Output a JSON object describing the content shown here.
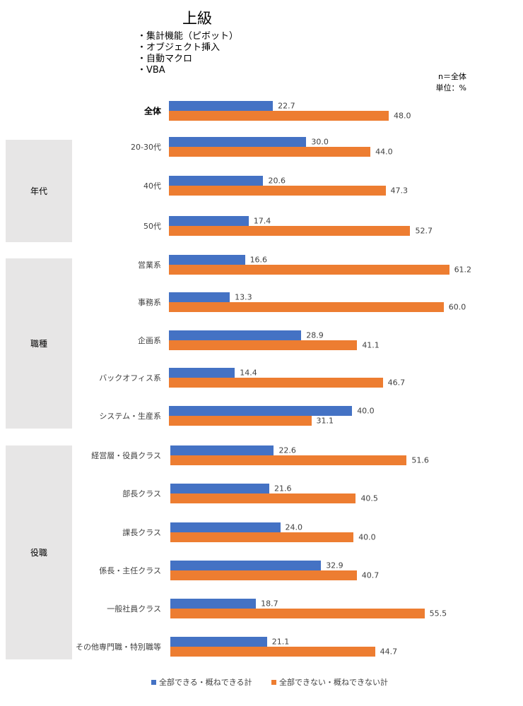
{
  "title": "上級",
  "skills": [
    "・集計機能（ピボット）",
    "・オブジェクト挿入",
    "・自動マクロ",
    "・VBA"
  ],
  "notes": {
    "n": "n＝全体",
    "unit": "単位：%"
  },
  "chart_data": {
    "type": "bar",
    "orientation": "horizontal",
    "groups": [
      {
        "name": "年代",
        "categories": [
          "20-30代",
          "40代",
          "50代"
        ]
      },
      {
        "name": "職種",
        "categories": [
          "営業系",
          "事務系",
          "企画系",
          "バックオフィス系",
          "システム・生産系"
        ]
      },
      {
        "name": "役職",
        "categories": [
          "経営層・役員クラス",
          "部長クラス",
          "課長クラス",
          "係長・主任クラス",
          "一般社員クラス",
          "その他専門職・特別職等"
        ]
      }
    ],
    "categories": [
      "全体",
      "20-30代",
      "40代",
      "50代",
      "営業系",
      "事務系",
      "企画系",
      "バックオフィス系",
      "システム・生産系",
      "経営層・役員クラス",
      "部長クラス",
      "課長クラス",
      "係長・主任クラス",
      "一般社員クラス",
      "その他専門職・特別職等"
    ],
    "series": [
      {
        "name": "全部できる・概ねできる計",
        "color": "#4472c4",
        "values": [
          22.7,
          30.0,
          20.6,
          17.4,
          16.6,
          13.3,
          28.9,
          14.4,
          40.0,
          22.6,
          21.6,
          24.0,
          32.9,
          18.7,
          21.1
        ]
      },
      {
        "name": "全部できない・概ねできない計",
        "color": "#ed7d31",
        "values": [
          48.0,
          44.0,
          47.3,
          52.7,
          61.2,
          60.0,
          41.1,
          46.7,
          31.1,
          51.6,
          40.5,
          40.0,
          40.7,
          55.5,
          44.7
        ]
      }
    ],
    "xlim": [
      0,
      70
    ],
    "grid": false,
    "legend": "bottom"
  }
}
